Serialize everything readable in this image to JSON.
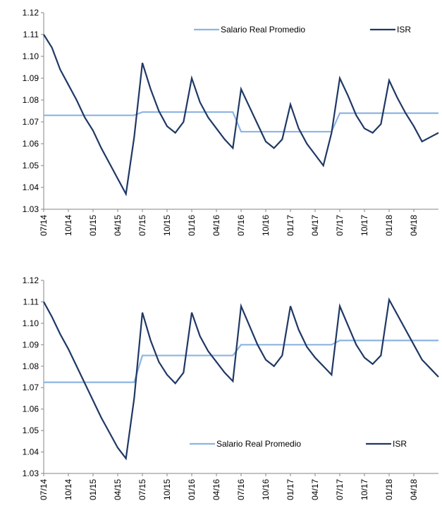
{
  "chart_data": [
    {
      "type": "line",
      "categories": [
        "07/14",
        null,
        null,
        "10/14",
        null,
        null,
        "01/15",
        null,
        null,
        "04/15",
        null,
        null,
        "07/15",
        null,
        null,
        "10/15",
        null,
        null,
        "01/16",
        null,
        null,
        "04/16",
        null,
        null,
        "07/16",
        null,
        null,
        "10/16",
        null,
        null,
        "01/17",
        null,
        null,
        "04/17",
        null,
        null,
        "07/17",
        null,
        null,
        "10/17",
        null,
        null,
        "01/18",
        null,
        null,
        "04/18",
        null,
        null,
        null
      ],
      "series": [
        {
          "name": "Salario Real Promedio",
          "color": "#8db4e2",
          "values": [
            1.073,
            1.073,
            1.073,
            1.073,
            1.073,
            1.073,
            1.073,
            1.073,
            1.073,
            1.073,
            1.073,
            1.073,
            1.0745,
            1.0745,
            1.0745,
            1.0745,
            1.0745,
            1.0745,
            1.0745,
            1.0745,
            1.0745,
            1.0745,
            1.0745,
            1.0745,
            1.0655,
            1.0655,
            1.0655,
            1.0655,
            1.0655,
            1.0655,
            1.0655,
            1.0655,
            1.0655,
            1.0655,
            1.0655,
            1.0655,
            1.074,
            1.074,
            1.074,
            1.074,
            1.074,
            1.074,
            1.074,
            1.074,
            1.074,
            1.074,
            1.074,
            1.074,
            1.074
          ]
        },
        {
          "name": "ISR",
          "color": "#1f3864",
          "values": [
            1.11,
            1.104,
            1.094,
            1.087,
            1.08,
            1.072,
            1.066,
            1.058,
            1.051,
            1.044,
            1.037,
            1.063,
            1.097,
            1.085,
            1.075,
            1.068,
            1.065,
            1.07,
            1.09,
            1.079,
            1.072,
            1.067,
            1.062,
            1.058,
            1.085,
            1.077,
            1.069,
            1.061,
            1.058,
            1.062,
            1.078,
            1.067,
            1.06,
            1.055,
            1.05,
            1.065,
            1.09,
            1.082,
            1.073,
            1.067,
            1.065,
            1.069,
            1.089,
            1.081,
            1.074,
            1.068,
            1.061,
            1.063,
            1.065
          ]
        }
      ],
      "ylim": [
        1.03,
        1.12
      ],
      "yticks": [
        1.03,
        1.04,
        1.05,
        1.06,
        1.07,
        1.08,
        1.09,
        {
          "value": 1.1,
          "label": "1.10"
        },
        1.11,
        1.12
      ],
      "legend_position": "upper right"
    },
    {
      "type": "line",
      "categories": [
        "07/14",
        null,
        null,
        "10/14",
        null,
        null,
        "01/15",
        null,
        null,
        "04/15",
        null,
        null,
        "07/15",
        null,
        null,
        "10/15",
        null,
        null,
        "01/16",
        null,
        null,
        "04/16",
        null,
        null,
        "07/16",
        null,
        null,
        "10/16",
        null,
        null,
        "01/17",
        null,
        null,
        "04/17",
        null,
        null,
        "07/17",
        null,
        null,
        "10/17",
        null,
        null,
        "01/18",
        null,
        null,
        "04/18",
        null,
        null,
        null
      ],
      "series": [
        {
          "name": "Salario Real Promedio",
          "color": "#8db4e2",
          "values": [
            1.0725,
            1.0725,
            1.0725,
            1.0725,
            1.0725,
            1.0725,
            1.0725,
            1.0725,
            1.0725,
            1.0725,
            1.0725,
            1.0725,
            1.085,
            1.085,
            1.085,
            1.085,
            1.085,
            1.085,
            1.085,
            1.085,
            1.085,
            1.085,
            1.085,
            1.085,
            1.09,
            1.09,
            1.09,
            1.09,
            1.09,
            1.09,
            1.09,
            1.09,
            1.09,
            1.09,
            1.09,
            1.09,
            1.092,
            1.092,
            1.092,
            1.092,
            1.092,
            1.092,
            1.092,
            1.092,
            1.092,
            1.092,
            1.092,
            1.092,
            1.092
          ]
        },
        {
          "name": "ISR",
          "color": "#1f3864",
          "values": [
            1.11,
            1.103,
            1.095,
            1.088,
            1.08,
            1.072,
            1.064,
            1.056,
            1.049,
            1.042,
            1.037,
            1.065,
            1.105,
            1.092,
            1.082,
            1.076,
            1.072,
            1.077,
            1.105,
            1.094,
            1.087,
            1.082,
            1.077,
            1.073,
            1.108,
            1.099,
            1.09,
            1.083,
            1.08,
            1.085,
            1.108,
            1.097,
            1.089,
            1.084,
            1.08,
            1.076,
            1.108,
            1.099,
            1.09,
            1.084,
            1.081,
            1.085,
            1.111,
            1.104,
            1.097,
            1.09,
            1.083,
            1.079,
            1.075
          ]
        }
      ],
      "ylim": [
        1.03,
        1.12
      ],
      "yticks": [
        1.03,
        1.04,
        1.05,
        1.06,
        1.07,
        1.08,
        1.09,
        {
          "value": 1.1,
          "label": "1.10"
        },
        1.11,
        1.12
      ],
      "legend_position": "lower right"
    }
  ]
}
